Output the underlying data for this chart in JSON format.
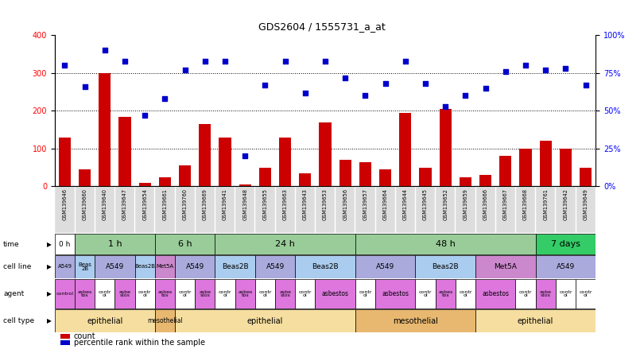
{
  "title": "GDS2604 / 1555731_a_at",
  "sample_ids": [
    "GSM139646",
    "GSM139660",
    "GSM139640",
    "GSM139647",
    "GSM139654",
    "GSM139661",
    "GSM139760",
    "GSM139669",
    "GSM139641",
    "GSM139648",
    "GSM139655",
    "GSM139663",
    "GSM139643",
    "GSM139653",
    "GSM139656",
    "GSM139657",
    "GSM139664",
    "GSM139644",
    "GSM139645",
    "GSM139652",
    "GSM139659",
    "GSM139666",
    "GSM139667",
    "GSM139668",
    "GSM139761",
    "GSM139642",
    "GSM139649"
  ],
  "counts": [
    130,
    45,
    300,
    185,
    10,
    25,
    55,
    165,
    130,
    5,
    50,
    130,
    35,
    170,
    70,
    65,
    45,
    195,
    50,
    205,
    25,
    30,
    80,
    100,
    120,
    100,
    50
  ],
  "percentile_ranks": [
    80,
    66,
    90,
    83,
    47,
    58,
    77,
    83,
    83,
    20,
    67,
    83,
    62,
    83,
    72,
    60,
    68,
    83,
    68,
    53,
    60,
    65,
    76,
    80,
    77,
    78,
    67
  ],
  "ylim_left": [
    0,
    400
  ],
  "ylim_right": [
    0,
    100
  ],
  "yticks_left": [
    0,
    100,
    200,
    300,
    400
  ],
  "yticks_right": [
    0,
    25,
    50,
    75,
    100
  ],
  "ytick_labels_right": [
    "0%",
    "25%",
    "50%",
    "75%",
    "100%"
  ],
  "hlines": [
    100,
    200,
    300
  ],
  "bar_color": "#cc0000",
  "dot_color": "#0000cc",
  "background_color": "#ffffff",
  "row_labels": [
    "time",
    "cell line",
    "agent",
    "cell type"
  ],
  "time_blocks": [
    {
      "label": "0 h",
      "start": 0,
      "end": 1,
      "color": "#ffffff"
    },
    {
      "label": "1 h",
      "start": 1,
      "end": 5,
      "color": "#99cc99"
    },
    {
      "label": "6 h",
      "start": 5,
      "end": 8,
      "color": "#99cc99"
    },
    {
      "label": "24 h",
      "start": 8,
      "end": 15,
      "color": "#99cc99"
    },
    {
      "label": "48 h",
      "start": 15,
      "end": 24,
      "color": "#99cc99"
    },
    {
      "label": "7 days",
      "start": 24,
      "end": 27,
      "color": "#33cc66"
    }
  ],
  "cellline_blocks": [
    {
      "label": "A549",
      "start": 0,
      "end": 1,
      "color": "#aaaadd"
    },
    {
      "label": "Beas\n2B",
      "start": 1,
      "end": 2,
      "color": "#aaccee"
    },
    {
      "label": "A549",
      "start": 2,
      "end": 4,
      "color": "#aaaadd"
    },
    {
      "label": "Beas2B",
      "start": 4,
      "end": 5,
      "color": "#aaccee"
    },
    {
      "label": "Met5A",
      "start": 5,
      "end": 6,
      "color": "#cc88cc"
    },
    {
      "label": "A549",
      "start": 6,
      "end": 8,
      "color": "#aaaadd"
    },
    {
      "label": "Beas2B",
      "start": 8,
      "end": 10,
      "color": "#aaccee"
    },
    {
      "label": "A549",
      "start": 10,
      "end": 12,
      "color": "#aaaadd"
    },
    {
      "label": "Beas2B",
      "start": 12,
      "end": 15,
      "color": "#aaccee"
    },
    {
      "label": "A549",
      "start": 15,
      "end": 18,
      "color": "#aaaadd"
    },
    {
      "label": "Beas2B",
      "start": 18,
      "end": 21,
      "color": "#aaccee"
    },
    {
      "label": "Met5A",
      "start": 21,
      "end": 24,
      "color": "#cc88cc"
    },
    {
      "label": "A549",
      "start": 24,
      "end": 27,
      "color": "#aaaadd"
    }
  ],
  "agent_blocks": [
    {
      "label": "control",
      "start": 0,
      "end": 1,
      "color": "#dd77dd"
    },
    {
      "label": "asbes\ntos",
      "start": 1,
      "end": 2,
      "color": "#dd77dd"
    },
    {
      "label": "contr\nol",
      "start": 2,
      "end": 3,
      "color": "#ffffff"
    },
    {
      "label": "asbe\nstos",
      "start": 3,
      "end": 4,
      "color": "#dd77dd"
    },
    {
      "label": "contr\nol",
      "start": 4,
      "end": 5,
      "color": "#ffffff"
    },
    {
      "label": "asbes\ntos",
      "start": 5,
      "end": 6,
      "color": "#dd77dd"
    },
    {
      "label": "contr\nol",
      "start": 6,
      "end": 7,
      "color": "#ffffff"
    },
    {
      "label": "asbe\nstos",
      "start": 7,
      "end": 8,
      "color": "#dd77dd"
    },
    {
      "label": "contr\nol",
      "start": 8,
      "end": 9,
      "color": "#ffffff"
    },
    {
      "label": "asbes\ntos",
      "start": 9,
      "end": 10,
      "color": "#dd77dd"
    },
    {
      "label": "contr\nol",
      "start": 10,
      "end": 11,
      "color": "#ffffff"
    },
    {
      "label": "asbe\nstos",
      "start": 11,
      "end": 12,
      "color": "#dd77dd"
    },
    {
      "label": "contr\nol",
      "start": 12,
      "end": 13,
      "color": "#ffffff"
    },
    {
      "label": "asbestos",
      "start": 13,
      "end": 15,
      "color": "#dd77dd"
    },
    {
      "label": "contr\nol",
      "start": 15,
      "end": 16,
      "color": "#ffffff"
    },
    {
      "label": "asbestos",
      "start": 16,
      "end": 18,
      "color": "#dd77dd"
    },
    {
      "label": "contr\nol",
      "start": 18,
      "end": 19,
      "color": "#ffffff"
    },
    {
      "label": "asbes\ntos",
      "start": 19,
      "end": 20,
      "color": "#dd77dd"
    },
    {
      "label": "contr\nol",
      "start": 20,
      "end": 21,
      "color": "#ffffff"
    },
    {
      "label": "asbestos",
      "start": 21,
      "end": 23,
      "color": "#dd77dd"
    },
    {
      "label": "contr\nol",
      "start": 23,
      "end": 24,
      "color": "#ffffff"
    },
    {
      "label": "asbe\nstos",
      "start": 24,
      "end": 25,
      "color": "#dd77dd"
    },
    {
      "label": "contr\nol",
      "start": 25,
      "end": 26,
      "color": "#ffffff"
    },
    {
      "label": "contr\nol",
      "start": 26,
      "end": 27,
      "color": "#ffffff"
    }
  ],
  "celltype_blocks": [
    {
      "label": "epithelial",
      "start": 0,
      "end": 5,
      "color": "#f5dea0"
    },
    {
      "label": "mesothelial",
      "start": 5,
      "end": 6,
      "color": "#e8b870"
    },
    {
      "label": "epithelial",
      "start": 6,
      "end": 15,
      "color": "#f5dea0"
    },
    {
      "label": "mesothelial",
      "start": 15,
      "end": 21,
      "color": "#e8b870"
    },
    {
      "label": "epithelial",
      "start": 21,
      "end": 27,
      "color": "#f5dea0"
    }
  ],
  "legend_bar_color": "#cc0000",
  "legend_dot_color": "#0000cc",
  "legend_bar_label": "count",
  "legend_dot_label": "percentile rank within the sample",
  "xticklabel_bg": "#dddddd"
}
